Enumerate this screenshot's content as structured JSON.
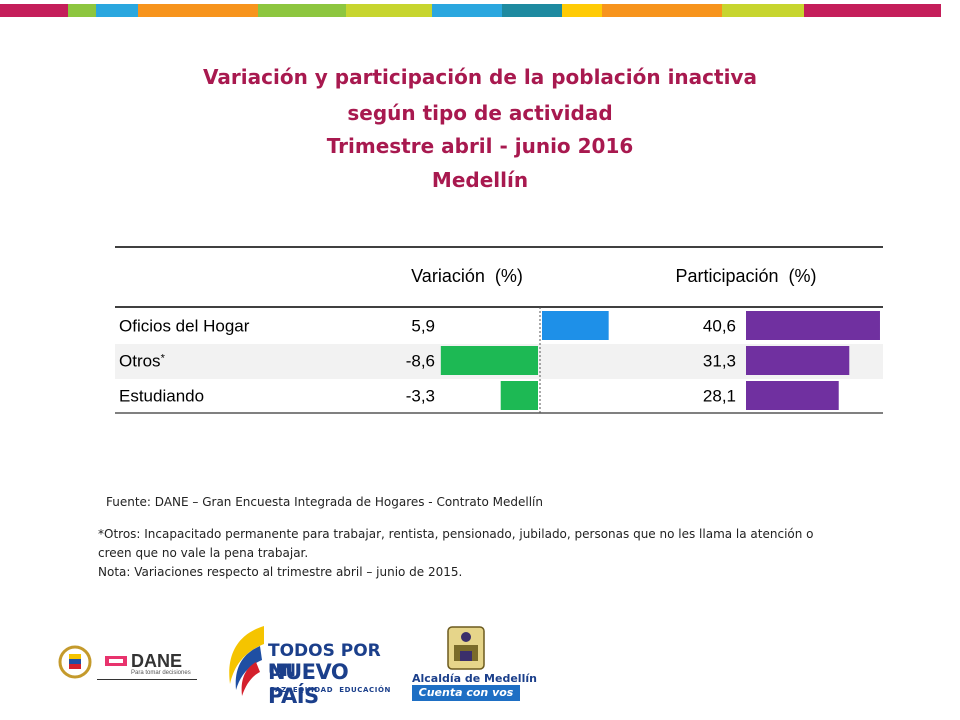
{
  "header_stripes": [
    "#c41e5a",
    "#8dc63f",
    "#2aa7df",
    "#f7941d",
    "#8dc63f",
    "#c7d52f",
    "#2aa7df",
    "#1e8aa0",
    "#ffcb05",
    "#f7941d",
    "#c7d52f",
    "#c41e5a"
  ],
  "title": {
    "line1": "Variación y participación de la población inactiva",
    "line2": "según tipo de actividad",
    "line3": "Trimestre abril - junio 2016",
    "line4": "Medellín"
  },
  "chart_data": {
    "type": "table",
    "headers": {
      "variacion": "Variación  (%)",
      "participacion": "Participación  (%)"
    },
    "rows": [
      {
        "label": "Oficios del Hogar",
        "label_suffix": "",
        "variacion": 5.9,
        "variacion_text": "5,9",
        "participacion": 40.6,
        "participacion_text": "40,6"
      },
      {
        "label": "Otros",
        "label_suffix": "*",
        "variacion": -8.6,
        "variacion_text": "-8,6",
        "participacion": 31.3,
        "participacion_text": "31,3"
      },
      {
        "label": "Estudiando",
        "label_suffix": "",
        "variacion": -3.3,
        "variacion_text": "-3,3",
        "participacion": 28.1,
        "participacion_text": "28,1"
      }
    ],
    "colors": {
      "positive": "#1e90e8",
      "negative": "#1db954",
      "participacion": "#7030a0",
      "shaded_row": "#f2f2f2"
    }
  },
  "notes": {
    "source": "Fuente: DANE – Gran Encuesta Integrada de Hogares - Contrato Medellín",
    "otros_line1": "*Otros: Incapacitado permanente para trabajar, rentista, pensionado, jubilado, personas que no les llama la atención o",
    "otros_line2": "creen que no vale la pena trabajar.",
    "nota": "Nota: Variaciones respecto al trimestre  abril – junio de 2015."
  },
  "logos": {
    "dane": "DANE",
    "dane_tagline": "Para tomar decisiones",
    "gov_line1": "TODOS POR UN",
    "gov_line2": "NUEVO PAÍS",
    "gov_line3": "PAZ  EQUIDAD  EDUCACIÓN",
    "alcaldia_line1": "Alcaldía de Medellín",
    "alcaldia_line2": "Cuenta con vos"
  }
}
